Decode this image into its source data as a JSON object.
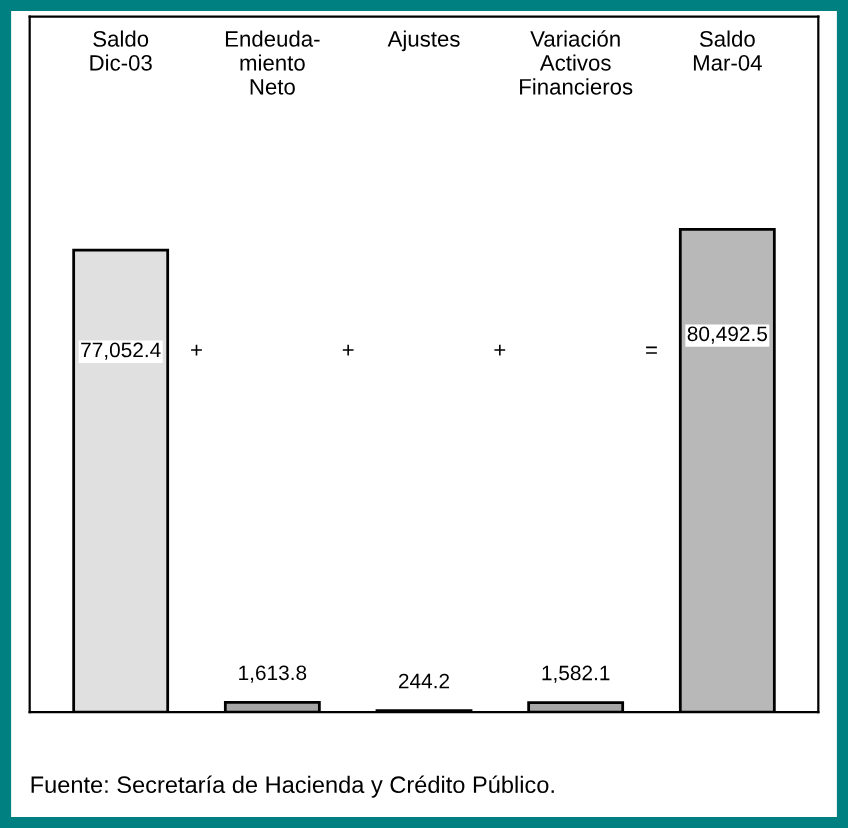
{
  "chart_data": {
    "type": "bar",
    "categories": [
      "Saldo\nDic-03",
      "Endeuda-\nmiento\nNeto",
      "Ajustes",
      "Variación\nActivos\nFinancieros",
      "Saldo\nMar-04"
    ],
    "values": [
      77052.4,
      1613.8,
      244.2,
      1582.1,
      80492.5
    ],
    "colors": [
      "#e0e0e0",
      "#a6a6a6",
      "#a6a6a6",
      "#a6a6a6",
      "#b8b8b8"
    ],
    "value_labels": [
      "77,052.4",
      "1,613.8",
      "244.2",
      "1,582.1",
      "80,492.5"
    ],
    "ylim": [
      0,
      116000
    ],
    "annotations": [
      "+",
      "+",
      "+",
      "=",
      "Fuente: Secretaría de Hacienda y Crédito Público."
    ],
    "tick_labels": "x"
  }
}
